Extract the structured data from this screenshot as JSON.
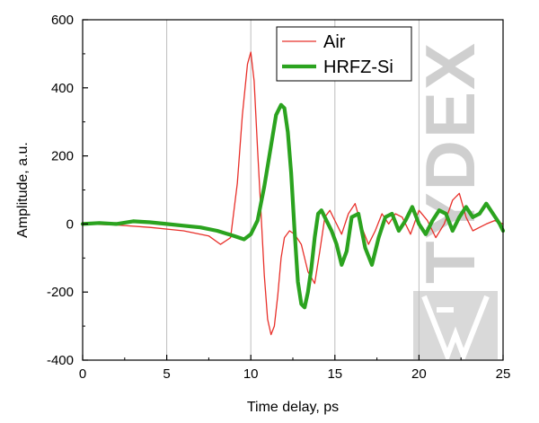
{
  "chart_data": {
    "type": "line",
    "xlabel": "Time delay, ps",
    "ylabel": "Amplitude, a.u.",
    "xlim": [
      0,
      25
    ],
    "ylim": [
      -400,
      600
    ],
    "xticks": [
      0,
      5,
      10,
      15,
      20,
      25
    ],
    "yticks": [
      -400,
      -200,
      0,
      200,
      400,
      600
    ],
    "grid": "vertical",
    "legend_position": "top-right",
    "series": [
      {
        "name": "Air",
        "color": "#e8302a",
        "x": [
          0,
          2,
          4,
          6,
          7.5,
          8.2,
          8.8,
          9.2,
          9.5,
          9.8,
          10.0,
          10.2,
          10.4,
          10.6,
          10.8,
          11.0,
          11.2,
          11.4,
          11.6,
          11.8,
          12.0,
          12.3,
          12.6,
          13.0,
          13.4,
          13.8,
          14.1,
          14.4,
          14.7,
          15.0,
          15.4,
          15.8,
          16.2,
          16.6,
          17.0,
          17.4,
          17.8,
          18.2,
          18.6,
          19.0,
          19.5,
          20.0,
          20.5,
          21.0,
          21.5,
          22.0,
          22.4,
          22.8,
          23.2,
          23.6,
          24.0,
          24.5,
          25.0
        ],
        "y": [
          0,
          -3,
          -10,
          -20,
          -35,
          -60,
          -40,
          120,
          320,
          470,
          505,
          420,
          220,
          40,
          -150,
          -280,
          -325,
          -300,
          -210,
          -100,
          -40,
          -20,
          -30,
          -60,
          -140,
          -175,
          -80,
          20,
          40,
          10,
          -30,
          30,
          60,
          -10,
          -60,
          -20,
          30,
          0,
          30,
          20,
          -30,
          40,
          10,
          -40,
          0,
          70,
          90,
          20,
          -20,
          -10,
          0,
          10,
          0
        ]
      },
      {
        "name": "HRFZ-Si",
        "color": "#2ba31f",
        "x": [
          0,
          1,
          2,
          3,
          4,
          5,
          6,
          7,
          8,
          9,
          9.6,
          10.0,
          10.4,
          10.8,
          11.2,
          11.5,
          11.8,
          12.0,
          12.2,
          12.4,
          12.6,
          12.8,
          13.0,
          13.2,
          13.4,
          13.6,
          13.8,
          14.0,
          14.2,
          14.5,
          14.8,
          15.1,
          15.4,
          15.7,
          16.0,
          16.4,
          16.8,
          17.2,
          17.6,
          18.0,
          18.4,
          18.8,
          19.2,
          19.6,
          20.0,
          20.4,
          20.8,
          21.2,
          21.6,
          22.0,
          22.4,
          22.8,
          23.2,
          23.6,
          24.0,
          24.4,
          24.8,
          25.0
        ],
        "y": [
          0,
          3,
          0,
          8,
          5,
          0,
          -5,
          -10,
          -20,
          -35,
          -45,
          -30,
          10,
          110,
          230,
          320,
          350,
          340,
          270,
          150,
          -20,
          -170,
          -235,
          -245,
          -200,
          -130,
          -40,
          30,
          40,
          10,
          -20,
          -60,
          -120,
          -80,
          20,
          30,
          -70,
          -120,
          -40,
          20,
          30,
          -20,
          10,
          50,
          0,
          -30,
          10,
          40,
          30,
          -20,
          20,
          50,
          20,
          30,
          60,
          30,
          0,
          -20
        ]
      }
    ]
  },
  "watermark": {
    "text": "TYDEX"
  }
}
